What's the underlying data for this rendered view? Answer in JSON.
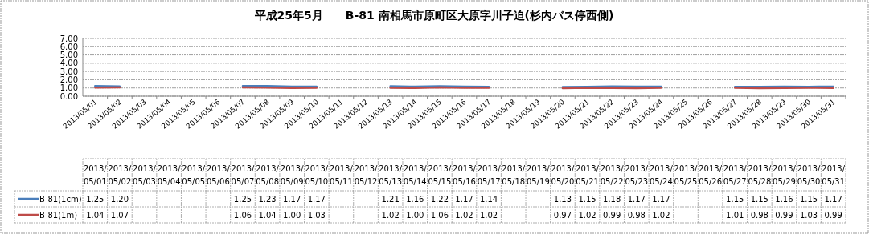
{
  "chart_data": {
    "type": "line",
    "title": "平成25年5月　　B-81 南相馬市原町区大原字川子迫(杉内バス停西側)",
    "categories": [
      "2013/05/01",
      "2013/05/02",
      "2013/05/03",
      "2013/05/04",
      "2013/05/05",
      "2013/05/06",
      "2013/05/07",
      "2013/05/08",
      "2013/05/09",
      "2013/05/10",
      "2013/05/11",
      "2013/05/12",
      "2013/05/13",
      "2013/05/14",
      "2013/05/15",
      "2013/05/16",
      "2013/05/17",
      "2013/05/18",
      "2013/05/19",
      "2013/05/20",
      "2013/05/21",
      "2013/05/22",
      "2013/05/23",
      "2013/05/24",
      "2013/05/25",
      "2013/05/26",
      "2013/05/27",
      "2013/05/28",
      "2013/05/29",
      "2013/05/30",
      "2013/05/31"
    ],
    "series": [
      {
        "name": "B-81(1cm)",
        "color": "#4a7ebb",
        "values": [
          1.25,
          1.2,
          null,
          null,
          null,
          null,
          1.25,
          1.23,
          1.17,
          1.17,
          null,
          null,
          1.21,
          1.16,
          1.22,
          1.17,
          1.14,
          null,
          null,
          1.13,
          1.15,
          1.18,
          1.17,
          1.17,
          null,
          null,
          1.15,
          1.15,
          1.16,
          1.15,
          1.17
        ],
        "value_labels": [
          "1.25",
          "1.20",
          null,
          null,
          null,
          null,
          "1.25",
          "1.23",
          "1.17",
          "1.17",
          null,
          null,
          "1.21",
          "1.16",
          "1.22",
          "1.17",
          "1.14",
          null,
          null,
          "1.13",
          "1.15",
          "1.18",
          "1.17",
          "1.17",
          null,
          null,
          "1.15",
          "1.15",
          "1.16",
          "1.15",
          "1.17"
        ]
      },
      {
        "name": "B-81(1m)",
        "color": "#be4b48",
        "values": [
          1.04,
          1.07,
          null,
          null,
          null,
          null,
          1.06,
          1.04,
          1.0,
          1.03,
          null,
          null,
          1.02,
          1.0,
          1.06,
          1.02,
          1.02,
          null,
          null,
          0.97,
          1.02,
          0.99,
          0.98,
          1.02,
          null,
          null,
          1.01,
          0.98,
          0.99,
          1.03,
          0.99
        ],
        "value_labels": [
          "1.04",
          "1.07",
          null,
          null,
          null,
          null,
          "1.06",
          "1.04",
          "1.00",
          "1.03",
          null,
          null,
          "1.02",
          "1.00",
          "1.06",
          "1.02",
          "1.02",
          null,
          null,
          "0.97",
          "1.02",
          "0.99",
          "0.98",
          "1.02",
          null,
          null,
          "1.01",
          "0.98",
          "0.99",
          "1.03",
          "0.99"
        ]
      }
    ],
    "ylim": [
      0,
      7
    ],
    "yticks": [
      {
        "value": 0,
        "label": "0.00"
      },
      {
        "value": 1,
        "label": "1.00"
      },
      {
        "value": 2,
        "label": "2.00"
      },
      {
        "value": 3,
        "label": "3.00"
      },
      {
        "value": 4,
        "label": "4.00"
      },
      {
        "value": 5,
        "label": "5.00"
      },
      {
        "value": 6,
        "label": "6.00"
      },
      {
        "value": 7,
        "label": "7.00"
      }
    ],
    "grid": "y",
    "legend": "bottom left"
  }
}
